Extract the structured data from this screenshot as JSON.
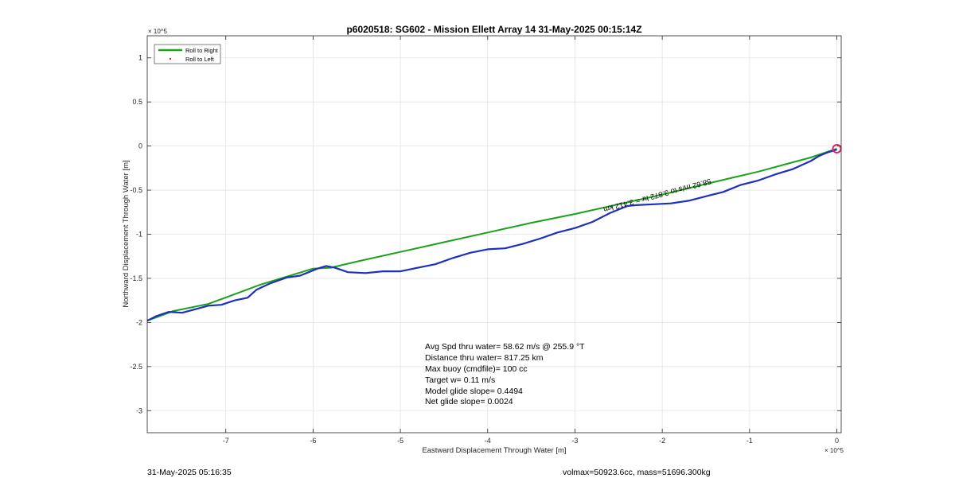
{
  "chart_data": {
    "type": "line",
    "title": "p6020518: SG602 - Mission Ellett Array 14 31-May-2025 00:15:14Z",
    "xlabel": "Eastward Displacement Through Water [m]",
    "ylabel": "Northward Displacement Through Water [m]",
    "x_exponent_label": "× 10^5",
    "y_exponent_label": "× 10^5",
    "xlim": [
      -7.9,
      0.05
    ],
    "ylim": [
      -3.25,
      1.25
    ],
    "scale": 100000,
    "xticks": [
      -7,
      -6,
      -5,
      -4,
      -3,
      -2,
      -1,
      0
    ],
    "yticks": [
      1,
      0.5,
      0,
      -0.5,
      -1,
      -1.5,
      -2,
      -2.5,
      -3
    ],
    "xtick_labels": [
      "-7",
      "-6",
      "-5",
      "-4",
      "-3",
      "-2",
      "-1",
      "0"
    ],
    "ytick_labels": [
      "1",
      "0.5",
      "0",
      "-0.5",
      "-1",
      "-1.5",
      "-2",
      "-2.5",
      "-3"
    ],
    "grid": true,
    "legend_position": "top-left",
    "legend": [
      {
        "label": "Roll to Right",
        "color": "#1aa21a",
        "style": "line"
      },
      {
        "label": "Roll to Left",
        "color": "#e52222",
        "style": "point"
      }
    ],
    "series": [
      {
        "color": "#1aa21a",
        "x": [
          -7.9,
          -7.6,
          -7.2,
          -6.9,
          -6.6,
          -6.3,
          -6.0,
          -5.8,
          -5.5,
          -5.0,
          -4.5,
          -4.0,
          -3.5,
          -3.0,
          -2.5,
          -2.0,
          -1.5,
          -1.2,
          -0.9,
          -0.6,
          -0.3,
          -0.15,
          0.0
        ],
        "y": [
          -1.98,
          -1.87,
          -1.79,
          -1.68,
          -1.57,
          -1.48,
          -1.39,
          -1.38,
          -1.31,
          -1.2,
          -1.09,
          -0.98,
          -0.87,
          -0.77,
          -0.66,
          -0.55,
          -0.43,
          -0.36,
          -0.29,
          -0.21,
          -0.13,
          -0.08,
          -0.03
        ]
      },
      {
        "color": "#1c2fbf",
        "x": [
          -7.9,
          -7.8,
          -7.65,
          -7.5,
          -7.35,
          -7.2,
          -7.05,
          -6.9,
          -6.75,
          -6.65,
          -6.5,
          -6.3,
          -6.15,
          -6.05,
          -5.95,
          -5.85,
          -5.75,
          -5.6,
          -5.4,
          -5.2,
          -5.0,
          -4.8,
          -4.6,
          -4.4,
          -4.2,
          -4.0,
          -3.8,
          -3.6,
          -3.4,
          -3.2,
          -3.0,
          -2.8,
          -2.6,
          -2.4,
          -2.3,
          -2.1,
          -1.9,
          -1.7,
          -1.5,
          -1.3,
          -1.1,
          -0.9,
          -0.7,
          -0.5,
          -0.3,
          -0.2,
          -0.1,
          0.0
        ],
        "y": [
          -1.98,
          -1.93,
          -1.88,
          -1.89,
          -1.85,
          -1.81,
          -1.8,
          -1.75,
          -1.72,
          -1.63,
          -1.56,
          -1.49,
          -1.47,
          -1.43,
          -1.39,
          -1.36,
          -1.38,
          -1.43,
          -1.44,
          -1.42,
          -1.42,
          -1.38,
          -1.34,
          -1.27,
          -1.21,
          -1.17,
          -1.16,
          -1.11,
          -1.05,
          -0.98,
          -0.93,
          -0.86,
          -0.76,
          -0.68,
          -0.67,
          -0.66,
          -0.65,
          -0.62,
          -0.57,
          -0.52,
          -0.44,
          -0.39,
          -0.32,
          -0.26,
          -0.17,
          -0.11,
          -0.07,
          -0.04
        ]
      }
    ],
    "end_marker": {
      "x": 0.0,
      "y": -0.03,
      "color": "#e5226e"
    },
    "rotated_annotation": {
      "text": "58.62 m/s to 3.872 hr = 3.412 km",
      "x": -1.45,
      "y": -0.37
    },
    "annotations": [
      "Avg Spd thru water= 58.62 m/s @ 255.9 °T",
      "Distance thru water= 817.25 km",
      "Max buoy (cmdfile)= 100 cc",
      "Target w= 0.11 m/s",
      "Model glide slope= 0.4494",
      "Net glide slope= 0.0024"
    ]
  },
  "footer": {
    "timestamp": "31-May-2025 05:16:35",
    "summary": "volmax=50923.6cc, mass=51696.300kg"
  }
}
